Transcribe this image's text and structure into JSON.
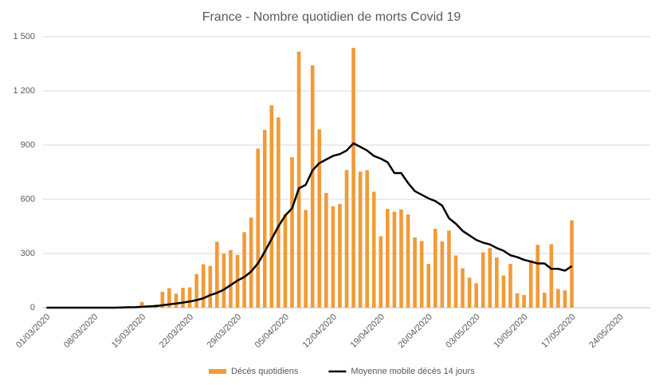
{
  "chart_data": {
    "type": "bar-line",
    "title": "France - Nombre quotidien de morts Covid 19",
    "categories": [
      "01/03/2020",
      null,
      null,
      null,
      null,
      null,
      null,
      "08/03/2020",
      null,
      null,
      null,
      null,
      null,
      null,
      "15/03/2020",
      null,
      null,
      null,
      null,
      null,
      null,
      "22/03/2020",
      null,
      null,
      null,
      null,
      null,
      null,
      "29/03/2020",
      null,
      null,
      null,
      null,
      null,
      null,
      "05/04/2020",
      null,
      null,
      null,
      null,
      null,
      null,
      "12/04/2020",
      null,
      null,
      null,
      null,
      null,
      null,
      "19/04/2020",
      null,
      null,
      null,
      null,
      null,
      null,
      "26/04/2020",
      null,
      null,
      null,
      null,
      null,
      null,
      "03/05/2020",
      null,
      null,
      null,
      null,
      null,
      null,
      "10/05/2020",
      null,
      null,
      null,
      null,
      null,
      null,
      "17/05/2020",
      null,
      null,
      null,
      null,
      null,
      null,
      "24/05/2020",
      null,
      null,
      null,
      null
    ],
    "series": [
      {
        "name": "Décès quotidiens",
        "kind": "bar",
        "color": "#f29a38",
        "values": [
          0,
          0,
          0,
          0,
          0,
          0,
          0,
          0,
          0,
          0,
          3,
          7,
          9,
          5,
          32,
          14,
          18,
          88,
          108,
          78,
          110,
          112,
          186,
          240,
          231,
          365,
          299,
          319,
          292,
          418,
          499,
          880,
          984,
          1120,
          1053,
          518,
          833,
          1417,
          541,
          1341,
          987,
          635,
          561,
          574,
          762,
          1438,
          753,
          761,
          642,
          395,
          547,
          531,
          544,
          516,
          389,
          369,
          242,
          437,
          367,
          427,
          289,
          218,
          166,
          135,
          306,
          330,
          278,
          178,
          243,
          80,
          70,
          263,
          348,
          83,
          351,
          104,
          96,
          483,
          null,
          null,
          null,
          null,
          null,
          null,
          null,
          null,
          null,
          null,
          null
        ]
      },
      {
        "name": "Moyenne mobile décès 14 jours",
        "kind": "line",
        "color": "#000000",
        "values": [
          0,
          0,
          0,
          0,
          0,
          0,
          0,
          0,
          0,
          0,
          0,
          1,
          2,
          3,
          5,
          7,
          9,
          13,
          18,
          23,
          28,
          34,
          42,
          52,
          70,
          82,
          100,
          125,
          150,
          170,
          200,
          245,
          310,
          380,
          450,
          510,
          550,
          660,
          680,
          760,
          800,
          820,
          840,
          850,
          870,
          910,
          890,
          870,
          840,
          825,
          805,
          745,
          745,
          690,
          645,
          625,
          605,
          590,
          565,
          495,
          465,
          425,
          400,
          375,
          360,
          350,
          330,
          315,
          290,
          280,
          265,
          255,
          245,
          245,
          215,
          215,
          205,
          230,
          null,
          null,
          null,
          null,
          null,
          null,
          null,
          null,
          null,
          null,
          null
        ]
      }
    ],
    "ylim": [
      0,
      1500
    ],
    "yticks": [
      0,
      300,
      600,
      900,
      {
        "value": 1200,
        "label": "1 200"
      },
      {
        "value": 1500,
        "label": "1 500"
      }
    ],
    "grid": true,
    "legend": "bottom"
  }
}
